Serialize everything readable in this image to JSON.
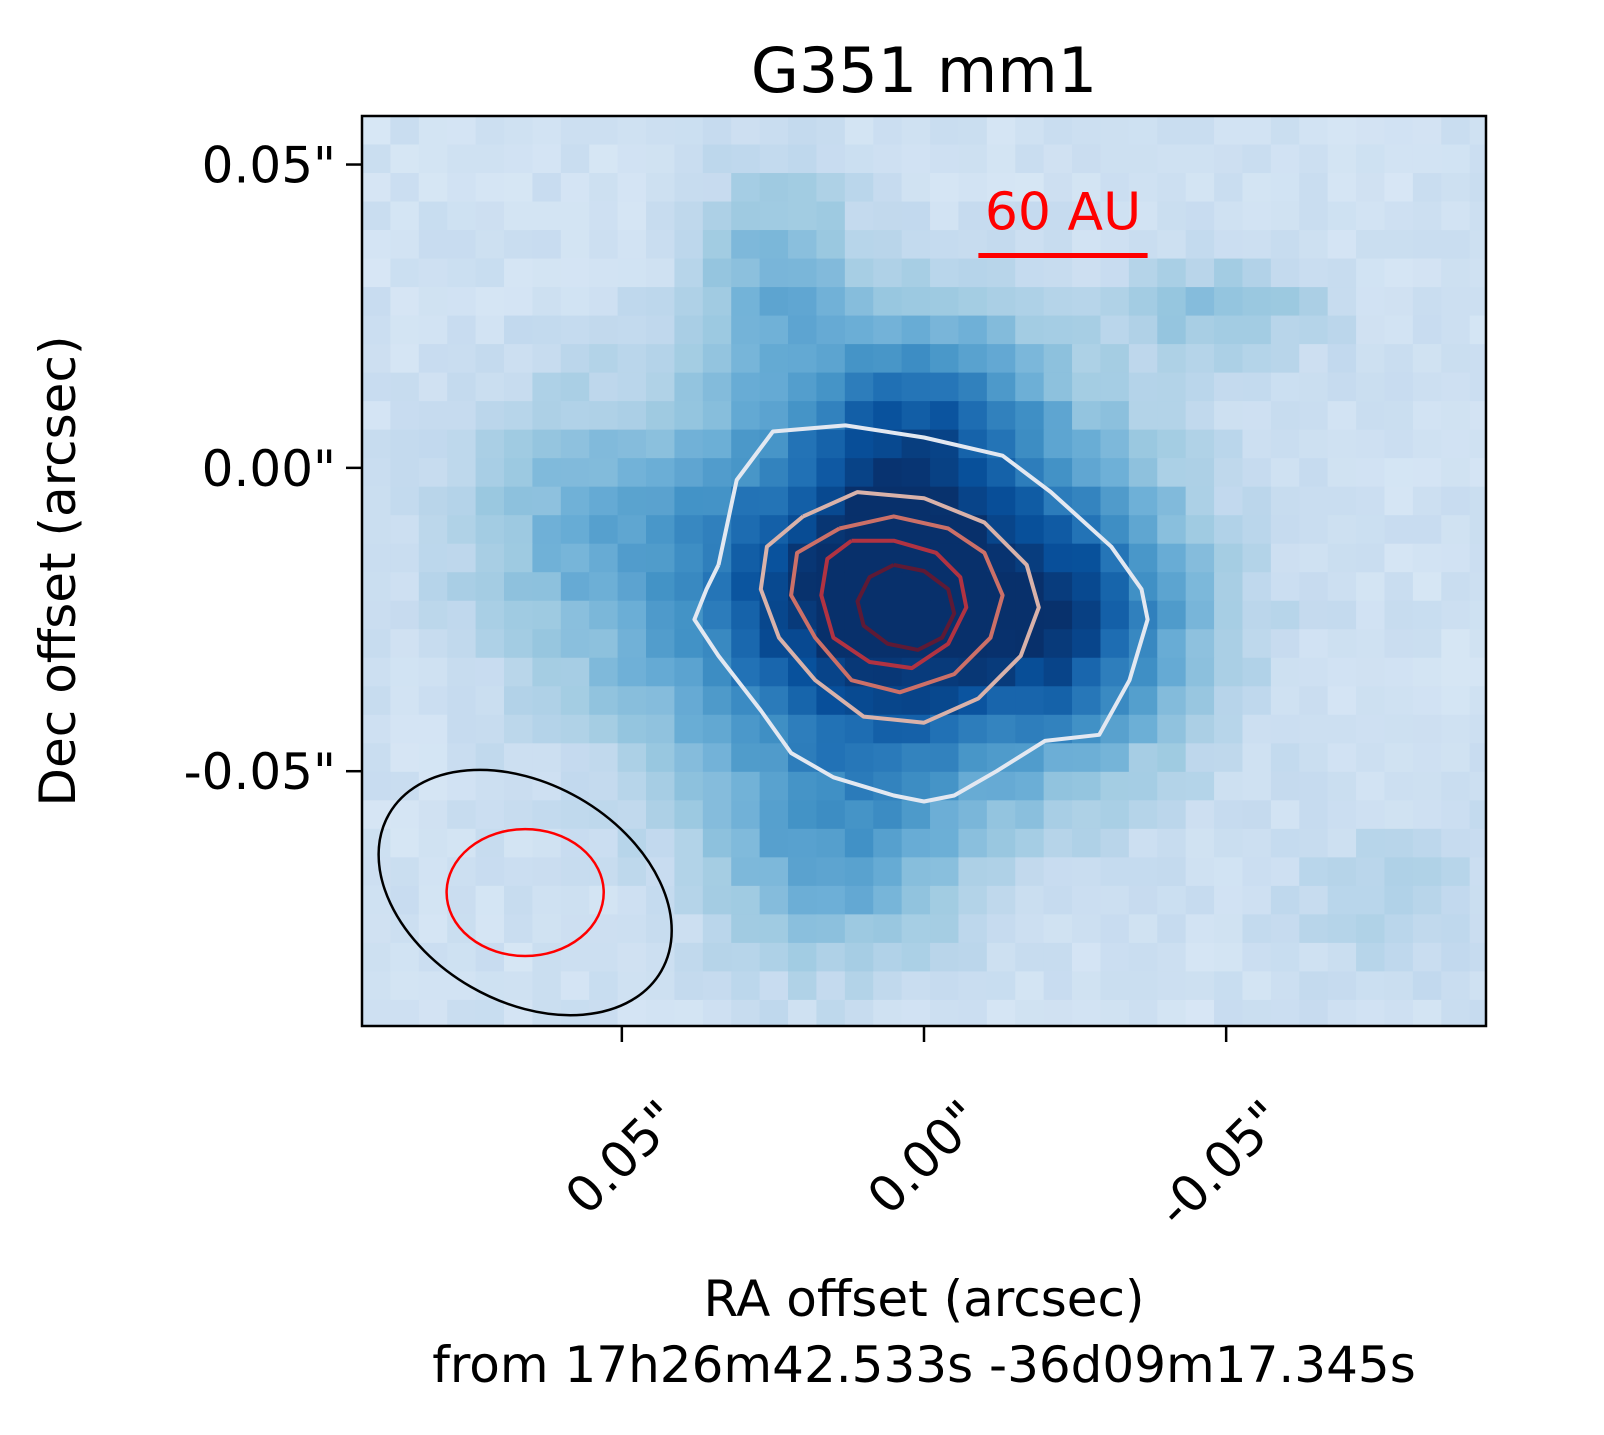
{
  "chart_data": {
    "type": "heatmap",
    "title": "G351 mm1",
    "xlabel_lines": [
      "RA offset (arcsec)",
      "from 17h26m42.533s -36d09m17.345s"
    ],
    "ylabel": "Dec offset (arcsec)",
    "xlim": [
      0.093,
      -0.093
    ],
    "ylim": [
      -0.092,
      0.058
    ],
    "x_axis_inverted": true,
    "x_ticks": [
      {
        "value": 0.05,
        "label": "0.05\""
      },
      {
        "value": 0.0,
        "label": "0.00\""
      },
      {
        "value": -0.05,
        "label": "-0.05\""
      }
    ],
    "y_ticks": [
      {
        "value": 0.05,
        "label": "0.05\""
      },
      {
        "value": 0.0,
        "label": "0.00\""
      },
      {
        "value": -0.05,
        "label": "-0.05\""
      }
    ],
    "x_tick_rotation_deg": 45,
    "colormap": "Blues",
    "colormap_colors": [
      "#f7fbff",
      "#deebf7",
      "#c6dbef",
      "#9ecae1",
      "#6baed6",
      "#4292c6",
      "#2171b5",
      "#08519c",
      "#08306b"
    ],
    "image_sources": [
      {
        "x": 0.005,
        "y": -0.021,
        "sx": 0.027,
        "sy": 0.022,
        "amp": 0.92
      },
      {
        "x": 0.0,
        "y": 0.011,
        "sx": 0.014,
        "sy": 0.011,
        "amp": 0.3
      },
      {
        "x": -0.027,
        "y": -0.026,
        "sx": 0.012,
        "sy": 0.013,
        "amp": 0.28
      },
      {
        "x": 0.024,
        "y": 0.033,
        "sx": 0.009,
        "sy": 0.012,
        "amp": 0.25
      },
      {
        "x": 0.015,
        "y": -0.065,
        "sx": 0.014,
        "sy": 0.013,
        "amp": 0.26
      },
      {
        "x": -0.05,
        "y": 0.026,
        "sx": 0.012,
        "sy": 0.006,
        "amp": 0.2
      },
      {
        "x": 0.06,
        "y": -0.01,
        "sx": 0.014,
        "sy": 0.016,
        "amp": 0.18
      },
      {
        "x": -0.078,
        "y": -0.072,
        "sx": 0.014,
        "sy": 0.01,
        "amp": 0.1
      }
    ],
    "image_background_level": 0.2,
    "contours": [
      {
        "level": 1,
        "color": "#e3e8f1",
        "points": [
          [
            0.034,
            -0.016
          ],
          [
            0.031,
            -0.002
          ],
          [
            0.025,
            0.006
          ],
          [
            0.013,
            0.007
          ],
          [
            0.0,
            0.005
          ],
          [
            -0.013,
            0.002
          ],
          [
            -0.021,
            -0.004
          ],
          [
            -0.031,
            -0.013
          ],
          [
            -0.036,
            -0.02
          ],
          [
            -0.037,
            -0.025
          ],
          [
            -0.034,
            -0.035
          ],
          [
            -0.029,
            -0.044
          ],
          [
            -0.02,
            -0.045
          ],
          [
            -0.012,
            -0.05
          ],
          [
            -0.005,
            -0.054
          ],
          [
            0.0,
            -0.055
          ],
          [
            0.005,
            -0.054
          ],
          [
            0.015,
            -0.051
          ],
          [
            0.022,
            -0.047
          ],
          [
            0.027,
            -0.04
          ],
          [
            0.034,
            -0.031
          ],
          [
            0.038,
            -0.025
          ],
          [
            0.036,
            -0.02
          ],
          [
            0.034,
            -0.016
          ]
        ]
      },
      {
        "level": 2,
        "color": "#d9b2aa",
        "points": [
          [
            0.02,
            -0.008
          ],
          [
            0.011,
            -0.004
          ],
          [
            0.0,
            -0.005
          ],
          [
            -0.01,
            -0.009
          ],
          [
            -0.017,
            -0.016
          ],
          [
            -0.019,
            -0.023
          ],
          [
            -0.016,
            -0.031
          ],
          [
            -0.009,
            -0.038
          ],
          [
            0.0,
            -0.042
          ],
          [
            0.01,
            -0.041
          ],
          [
            0.018,
            -0.035
          ],
          [
            0.024,
            -0.028
          ],
          [
            0.027,
            -0.02
          ],
          [
            0.026,
            -0.013
          ],
          [
            0.02,
            -0.008
          ]
        ]
      },
      {
        "level": 3,
        "color": "#cc7068",
        "points": [
          [
            0.014,
            -0.01
          ],
          [
            0.005,
            -0.008
          ],
          [
            -0.004,
            -0.01
          ],
          [
            -0.01,
            -0.014
          ],
          [
            -0.013,
            -0.021
          ],
          [
            -0.011,
            -0.028
          ],
          [
            -0.005,
            -0.034
          ],
          [
            0.004,
            -0.037
          ],
          [
            0.012,
            -0.035
          ],
          [
            0.018,
            -0.028
          ],
          [
            0.022,
            -0.021
          ],
          [
            0.021,
            -0.014
          ],
          [
            0.014,
            -0.01
          ]
        ]
      },
      {
        "level": 4,
        "color": "#b13342",
        "points": [
          [
            0.012,
            -0.012
          ],
          [
            0.005,
            -0.012
          ],
          [
            -0.002,
            -0.014
          ],
          [
            -0.006,
            -0.018
          ],
          [
            -0.007,
            -0.023
          ],
          [
            -0.004,
            -0.029
          ],
          [
            0.002,
            -0.033
          ],
          [
            0.009,
            -0.032
          ],
          [
            0.015,
            -0.028
          ],
          [
            0.017,
            -0.021
          ],
          [
            0.016,
            -0.015
          ],
          [
            0.012,
            -0.012
          ]
        ]
      },
      {
        "level": 5,
        "color": "#5e1a35",
        "points": [
          [
            0.005,
            -0.016
          ],
          [
            0.0,
            -0.017
          ],
          [
            -0.004,
            -0.02
          ],
          [
            -0.005,
            -0.024
          ],
          [
            -0.003,
            -0.028
          ],
          [
            0.001,
            -0.03
          ],
          [
            0.006,
            -0.029
          ],
          [
            0.01,
            -0.026
          ],
          [
            0.011,
            -0.022
          ],
          [
            0.009,
            -0.018
          ],
          [
            0.005,
            -0.016
          ]
        ]
      }
    ],
    "beams": [
      {
        "center": [
          0.066,
          -0.07
        ],
        "semi_major": 0.026,
        "semi_minor": 0.018,
        "angle_deg": -30,
        "color": "#000000"
      },
      {
        "center": [
          0.066,
          -0.07
        ],
        "semi_major": 0.013,
        "semi_minor": 0.0105,
        "angle_deg": 0,
        "color": "#ff0000"
      }
    ],
    "scalebar": {
      "label": "60 AU",
      "length_arcsec": 0.028,
      "center": [
        -0.023,
        0.035
      ],
      "color": "#ff0000"
    }
  }
}
